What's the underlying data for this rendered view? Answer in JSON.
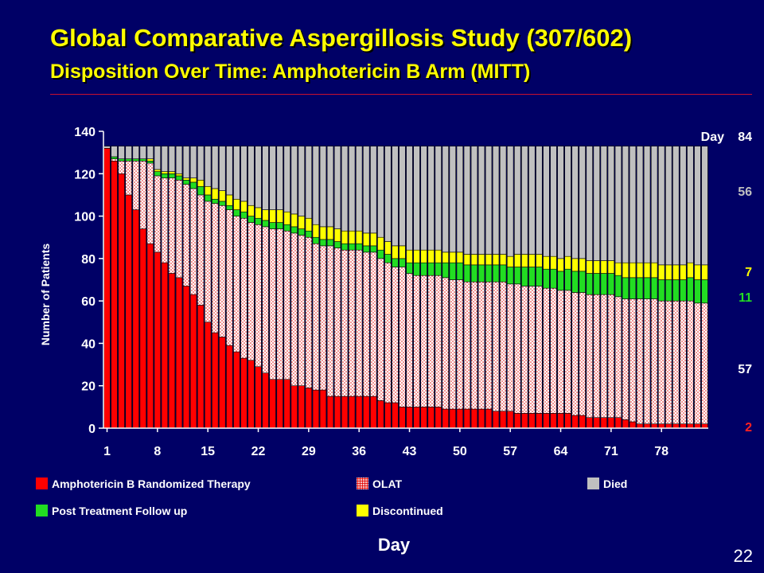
{
  "slide": {
    "title": "Global Comparative Aspergillosis Study (307/602)",
    "subtitle": "Disposition Over Time: Amphotericin B Arm (MITT)",
    "page_number": "22"
  },
  "colors": {
    "background": "#000066",
    "title": "#FFFF00",
    "therapy": "#FF0000",
    "olat": "#FFFFFF",
    "olat_dots": "#E00000",
    "follow_up": "#22DD22",
    "discontinued": "#FFFF00",
    "died": "#C0C0C0",
    "rule": "#C8102E"
  },
  "chart_data": {
    "type": "bar",
    "stacked": true,
    "xlabel": "Day",
    "ylabel": "Number of Patients",
    "ylim": [
      0,
      140
    ],
    "y_ticks": [
      0,
      20,
      40,
      60,
      80,
      100,
      120,
      140
    ],
    "x_tick_days": [
      1,
      8,
      15,
      22,
      29,
      36,
      43,
      50,
      57,
      64,
      71,
      78
    ],
    "x_tick_labels": [
      "1",
      "8",
      "15",
      "22",
      "29",
      "36",
      "43",
      "50",
      "57",
      "64",
      "71",
      "78"
    ],
    "x": [
      1,
      2,
      3,
      4,
      5,
      6,
      7,
      8,
      9,
      10,
      11,
      12,
      13,
      14,
      15,
      16,
      17,
      18,
      19,
      20,
      21,
      22,
      23,
      24,
      25,
      26,
      27,
      28,
      29,
      30,
      31,
      32,
      33,
      34,
      35,
      36,
      37,
      38,
      39,
      40,
      41,
      42,
      43,
      44,
      45,
      46,
      47,
      48,
      49,
      50,
      51,
      52,
      53,
      54,
      55,
      56,
      57,
      58,
      59,
      60,
      61,
      62,
      63,
      64,
      65,
      66,
      67,
      68,
      69,
      70,
      71,
      72,
      73,
      74,
      75,
      76,
      77,
      78,
      79,
      80,
      81,
      82,
      83,
      84
    ],
    "total": 133,
    "legend_placement": "bottom",
    "series": [
      {
        "name": "Amphotericin B Randomized Therapy",
        "color": "#FF0000",
        "values": [
          132,
          126,
          120,
          110,
          103,
          94,
          87,
          83,
          78,
          73,
          71,
          67,
          63,
          58,
          50,
          45,
          43,
          39,
          36,
          33,
          32,
          29,
          26,
          23,
          23,
          23,
          20,
          20,
          19,
          18,
          18,
          15,
          15,
          15,
          15,
          15,
          15,
          15,
          13,
          12,
          12,
          10,
          10,
          10,
          10,
          10,
          10,
          9,
          9,
          9,
          9,
          9,
          9,
          9,
          8,
          8,
          8,
          7,
          7,
          7,
          7,
          7,
          7,
          7,
          7,
          6,
          6,
          5,
          5,
          5,
          5,
          5,
          4,
          3,
          2,
          2,
          2,
          2,
          2,
          2,
          2,
          2,
          2,
          2
        ]
      },
      {
        "name": "OLAT",
        "color": "#FFFFFF",
        "values": [
          0,
          1,
          6,
          16,
          23,
          32,
          38,
          36,
          40,
          45,
          46,
          48,
          50,
          52,
          57,
          61,
          62,
          64,
          64,
          66,
          65,
          67,
          69,
          71,
          71,
          70,
          72,
          71,
          71,
          69,
          68,
          71,
          70,
          69,
          69,
          69,
          68,
          68,
          67,
          66,
          64,
          66,
          63,
          62,
          62,
          62,
          62,
          62,
          61,
          61,
          60,
          60,
          60,
          60,
          61,
          61,
          60,
          61,
          60,
          60,
          60,
          59,
          59,
          58,
          58,
          58,
          58,
          58,
          58,
          58,
          58,
          57,
          57,
          58,
          59,
          59,
          59,
          58,
          58,
          58,
          58,
          58,
          57,
          57
        ]
      },
      {
        "name": "Post Treatment Follow up",
        "color": "#22DD22",
        "values": [
          0,
          1,
          1,
          1,
          1,
          1,
          1,
          2,
          2,
          2,
          2,
          2,
          3,
          4,
          3,
          2,
          2,
          2,
          3,
          3,
          3,
          3,
          3,
          3,
          3,
          3,
          3,
          3,
          3,
          3,
          3,
          3,
          3,
          3,
          3,
          3,
          3,
          3,
          4,
          4,
          4,
          4,
          5,
          6,
          6,
          6,
          6,
          7,
          8,
          8,
          8,
          8,
          8,
          8,
          8,
          8,
          8,
          8,
          9,
          9,
          9,
          9,
          9,
          9,
          10,
          10,
          10,
          10,
          10,
          10,
          10,
          10,
          10,
          10,
          10,
          10,
          10,
          10,
          10,
          10,
          10,
          11,
          11,
          11
        ]
      },
      {
        "name": "Discontinued",
        "color": "#FFFF00",
        "values": [
          0,
          0,
          0,
          0,
          0,
          0,
          1,
          1,
          1,
          1,
          1,
          1,
          2,
          3,
          4,
          5,
          5,
          5,
          5,
          5,
          5,
          5,
          5,
          6,
          6,
          6,
          6,
          6,
          6,
          6,
          6,
          6,
          6,
          6,
          6,
          6,
          6,
          6,
          6,
          6,
          6,
          6,
          6,
          6,
          6,
          6,
          6,
          5,
          5,
          5,
          5,
          5,
          5,
          5,
          5,
          5,
          5,
          6,
          6,
          6,
          6,
          6,
          6,
          6,
          6,
          6,
          6,
          6,
          6,
          6,
          6,
          6,
          7,
          7,
          7,
          7,
          7,
          7,
          7,
          7,
          7,
          7,
          7,
          7
        ]
      },
      {
        "name": "Died",
        "color": "#C0C0C0",
        "values": [
          1,
          5,
          6,
          6,
          6,
          6,
          6,
          11,
          12,
          12,
          13,
          15,
          15,
          16,
          19,
          20,
          21,
          23,
          25,
          26,
          28,
          29,
          30,
          30,
          30,
          31,
          32,
          33,
          34,
          37,
          38,
          38,
          39,
          40,
          40,
          40,
          41,
          41,
          43,
          45,
          47,
          47,
          49,
          49,
          49,
          49,
          49,
          50,
          50,
          50,
          51,
          51,
          51,
          51,
          51,
          51,
          52,
          51,
          51,
          51,
          51,
          52,
          52,
          53,
          52,
          53,
          53,
          54,
          54,
          54,
          54,
          55,
          55,
          55,
          55,
          55,
          55,
          56,
          56,
          56,
          56,
          55,
          56,
          56
        ]
      }
    ],
    "end_labels": {
      "header_label": "Day",
      "header_value": "84",
      "died": "56",
      "discontinued": "7",
      "follow_up": "11",
      "olat": "57",
      "therapy": "2"
    }
  },
  "legend": {
    "therapy": "Amphotericin B Randomized Therapy",
    "olat": "OLAT",
    "died": "Died",
    "follow_up": "Post Treatment Follow up",
    "discontinued": "Discontinued"
  }
}
